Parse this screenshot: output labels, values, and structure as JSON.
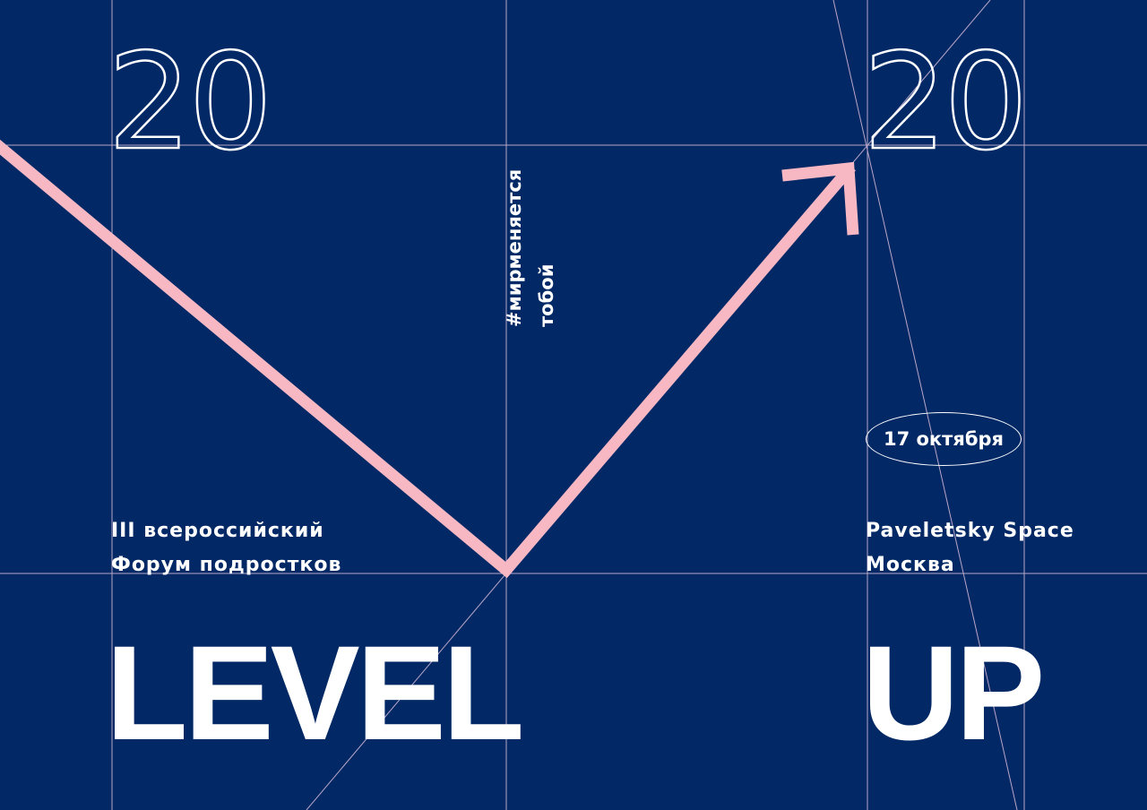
{
  "poster": {
    "year_left": "20",
    "year_right": "20",
    "hashtag_line1": "#мирменяется",
    "hashtag_line2": "тобой",
    "forum_line1": "III всероссийский",
    "forum_line2": "Форум подростков",
    "date": "17 октября",
    "venue": "Paveletsky Space",
    "city": "Москва",
    "title_left": "LEVEL",
    "title_right": "UP"
  },
  "colors": {
    "background": "#022966",
    "arrow": "#f7b8c4",
    "grid": "#b9a6c8",
    "text": "#ffffff"
  }
}
